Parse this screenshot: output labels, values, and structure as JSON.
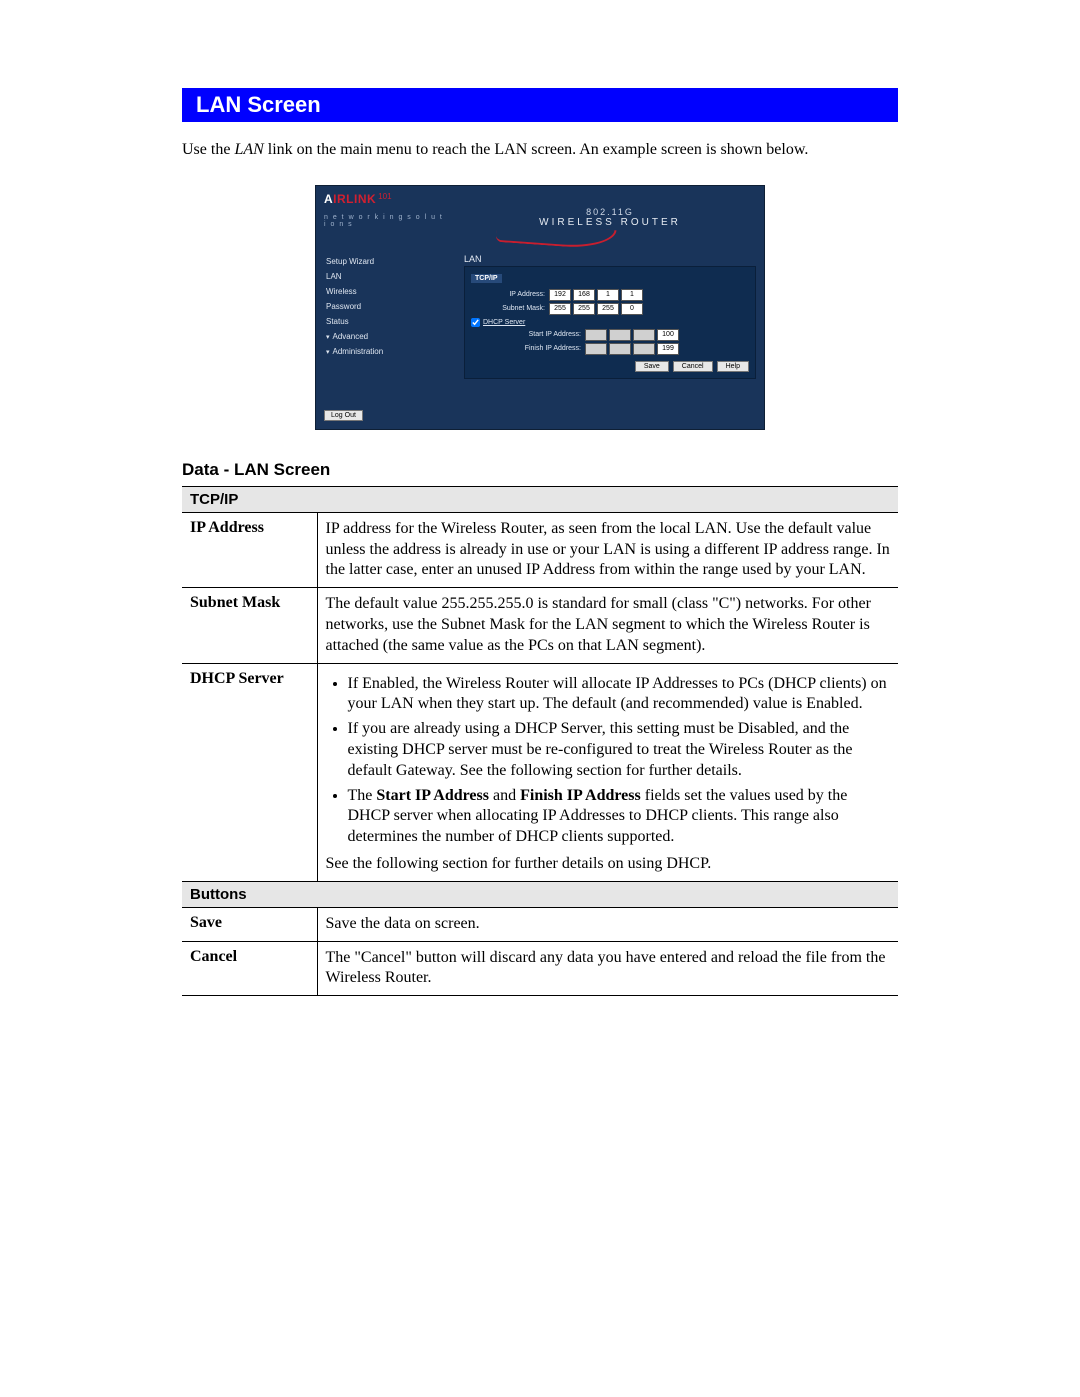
{
  "colors": {
    "title_bg": "#0000ff",
    "title_fg": "#ffffff",
    "router_bg": "#19345a",
    "router_panel": "#0f2c50",
    "accent_red": "#c81e2e",
    "table_section_bg": "#e6e6e6"
  },
  "page": {
    "title": "LAN Screen",
    "intro_pre": "Use the ",
    "intro_em": "LAN",
    "intro_post": " link on the main menu to reach the LAN screen. An example screen is shown below."
  },
  "router": {
    "logo": {
      "text_plain": "A",
      "text_red": "IRLINK",
      "sub_number": "101",
      "tagline": "n e t w o r k i n g s o l u t i o n s"
    },
    "banner": {
      "line1": "802.11G",
      "line2": "WIRELESS ROUTER"
    },
    "nav": {
      "section_title": "LAN",
      "items": [
        "Setup Wizard",
        "LAN",
        "Wireless",
        "Password",
        "Status",
        "Advanced",
        "Administration"
      ],
      "logout": "Log Out"
    },
    "panel": {
      "section": "TCP/IP",
      "ip_label": "IP Address:",
      "ip": [
        "192",
        "168",
        "1",
        "1"
      ],
      "mask_label": "Subnet Mask:",
      "mask": [
        "255",
        "255",
        "255",
        "0"
      ],
      "dhcp_checkbox_label": "DHCP Server",
      "start_label": "Start IP Address:",
      "start": [
        "",
        "",
        "",
        "100"
      ],
      "finish_label": "Finish IP Address:",
      "finish": [
        "",
        "",
        "",
        "199"
      ],
      "buttons": {
        "save": "Save",
        "cancel": "Cancel",
        "help": "Help"
      }
    }
  },
  "data_table": {
    "heading": "Data - LAN Screen",
    "sections": {
      "tcpip": {
        "title": "TCP/IP",
        "rows": {
          "ip": {
            "key": "IP Address",
            "val": "IP address for the Wireless Router, as seen from the local LAN. Use the default value unless the address is already in use or your LAN is using a different IP address range. In the latter case, enter an unused IP Address from within the range used by your LAN."
          },
          "mask": {
            "key": "Subnet Mask",
            "val": "The default value 255.255.255.0 is standard for small (class \"C\") networks. For other networks, use the Subnet Mask for the LAN segment to which the Wireless Router is attached (the same value as the PCs on that LAN segment)."
          },
          "dhcp": {
            "key": "DHCP Server",
            "b1": "If Enabled, the Wireless Router will allocate IP Addresses to PCs (DHCP clients) on your LAN when they start up. The default (and recommended) value is Enabled.",
            "b2": "If you are already using a DHCP Server, this setting must be Disabled, and the existing DHCP server must be re-configured to treat the Wireless Router as the default Gateway. See the following section for further details.",
            "b3_pre": "The ",
            "b3_s1": "Start IP Address",
            "b3_mid": " and ",
            "b3_s2": "Finish IP Address",
            "b3_post": " fields set the values used by the DHCP server when allocating IP Addresses to DHCP clients. This range also determines the number of DHCP clients supported.",
            "note": "See the following section for further details on using DHCP."
          }
        }
      },
      "buttons": {
        "title": "Buttons",
        "rows": {
          "save": {
            "key": "Save",
            "val": "Save the data on screen."
          },
          "cancel": {
            "key": "Cancel",
            "val": "The \"Cancel\" button will discard any data you have entered and reload the file from the Wireless Router."
          }
        }
      }
    }
  }
}
